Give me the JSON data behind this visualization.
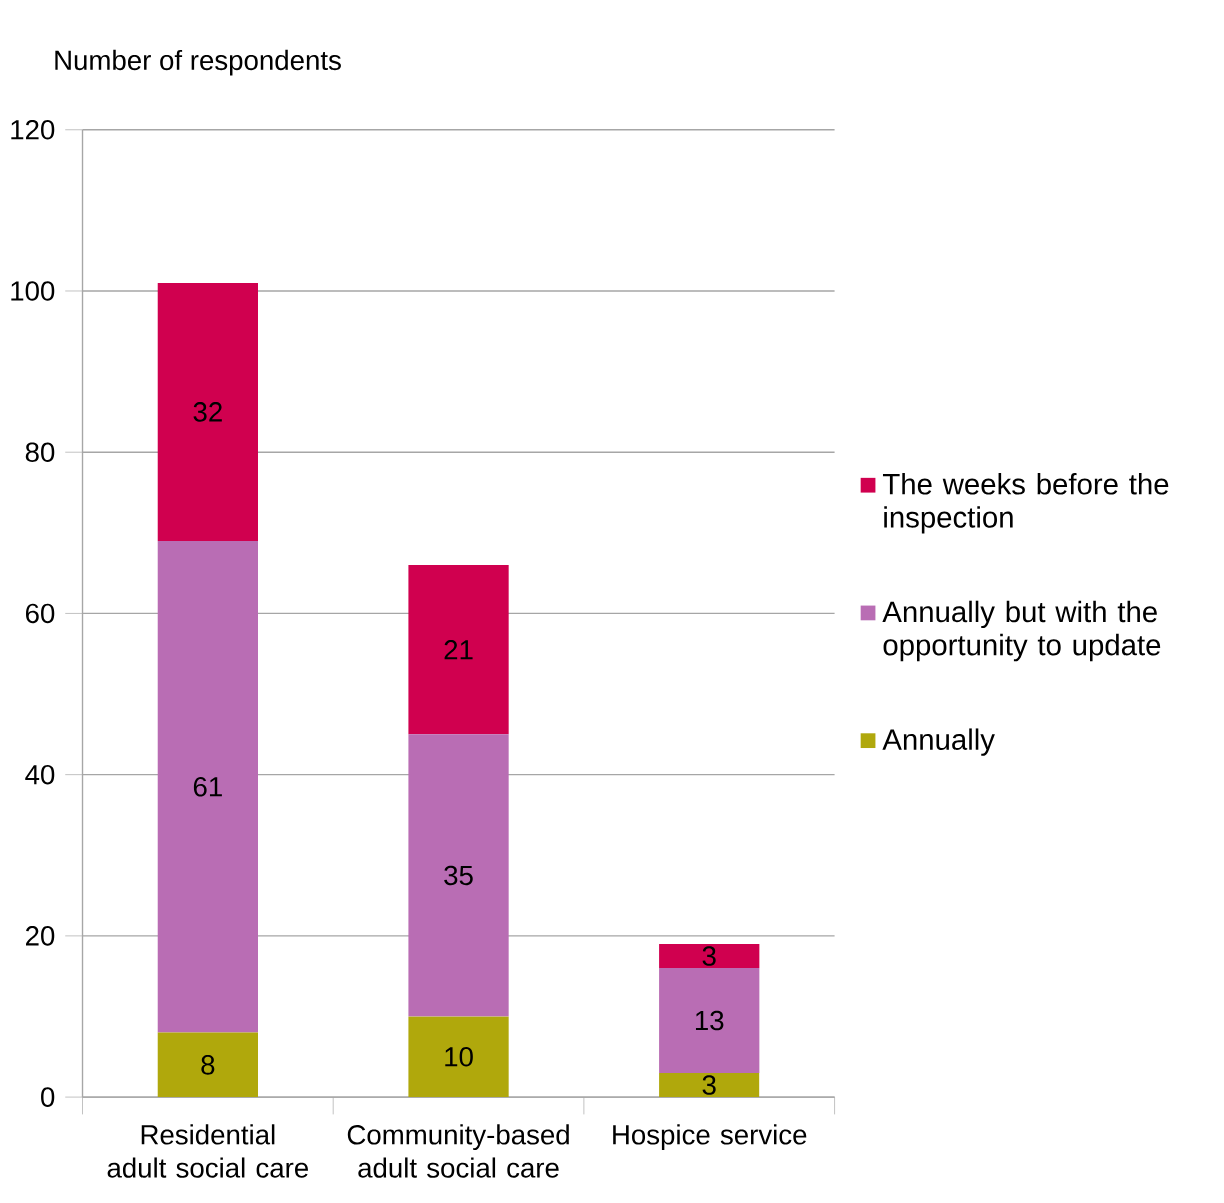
{
  "chart_data": {
    "type": "bar",
    "stacked": true,
    "ylabel": "Number of respondents",
    "categories": [
      "Residential adult social care",
      "Community-based adult social care",
      "Hospice service"
    ],
    "series": [
      {
        "name": "Annually",
        "color": "#b0a80c",
        "values": [
          8,
          10,
          3
        ]
      },
      {
        "name": "Annually but with the opportunity to update",
        "color": "#b96db4",
        "values": [
          61,
          35,
          13
        ]
      },
      {
        "name": "The weeks before the inspection",
        "color": "#d0004f",
        "values": [
          32,
          21,
          3
        ]
      }
    ],
    "ylim": [
      0,
      120
    ],
    "yticks": [
      0,
      20,
      40,
      60,
      80,
      100,
      120
    ],
    "grid": "y",
    "legend": "right",
    "data_labels": true
  }
}
